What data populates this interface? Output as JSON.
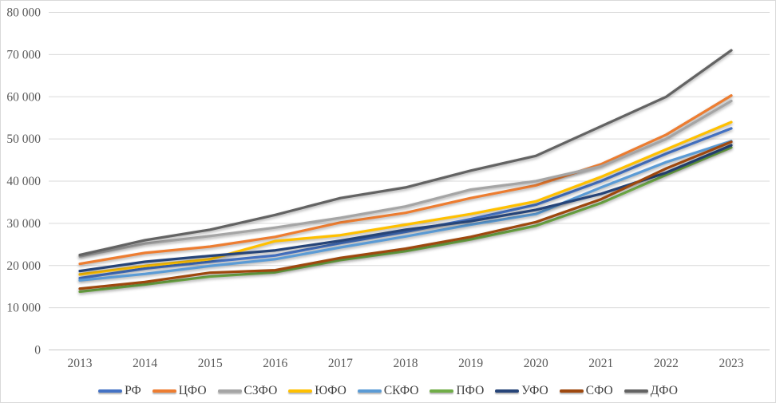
{
  "chart_data": {
    "type": "line",
    "title": "",
    "xlabel": "",
    "ylabel": "",
    "x_labels": [
      "2013",
      "2014",
      "2015",
      "2016",
      "2017",
      "2018",
      "2019",
      "2020",
      "2021",
      "2022",
      "2023"
    ],
    "ylim": [
      0,
      80000
    ],
    "grid": "horizontal",
    "legend_position": "bottom",
    "y_ticks": [
      {
        "label": "0",
        "value": 0
      },
      {
        "label": "10 000",
        "value": 10000
      },
      {
        "label": "20 000",
        "value": 20000
      },
      {
        "label": "30 000",
        "value": 30000
      },
      {
        "label": "40 000",
        "value": 40000
      },
      {
        "label": "50 000",
        "value": 50000
      },
      {
        "label": "60 000",
        "value": 60000
      },
      {
        "label": "70 000",
        "value": 70000
      },
      {
        "label": "80 000",
        "value": 80000
      }
    ],
    "series": [
      {
        "name": "РФ",
        "slug": "rf",
        "color": "#4472C4",
        "values": [
          17000,
          19300,
          20900,
          22400,
          25300,
          28000,
          31000,
          34400,
          40000,
          46500,
          52500
        ]
      },
      {
        "name": "ЦФО",
        "slug": "cfo",
        "color": "#ED7D31",
        "values": [
          20400,
          23000,
          24500,
          26800,
          30200,
          32500,
          36000,
          39000,
          44000,
          51000,
          60300
        ]
      },
      {
        "name": "СЗФО",
        "slug": "szfo",
        "color": "#A5A5A5",
        "values": [
          22200,
          25200,
          27000,
          29000,
          31300,
          34000,
          38000,
          40000,
          43500,
          50000,
          59000
        ]
      },
      {
        "name": "ЮФО",
        "slug": "yufo",
        "color": "#FFC000",
        "values": [
          17900,
          19900,
          21500,
          25800,
          27200,
          29700,
          32200,
          35200,
          41000,
          47500,
          54000
        ]
      },
      {
        "name": "СКФО",
        "slug": "skfo",
        "color": "#5B9BD5",
        "values": [
          16500,
          18000,
          19900,
          21500,
          24300,
          26900,
          29700,
          32200,
          38500,
          44500,
          49500
        ]
      },
      {
        "name": "ПФО",
        "slug": "pfo",
        "color": "#70AD47",
        "values": [
          13800,
          15500,
          17400,
          18400,
          21300,
          23400,
          26200,
          29400,
          34800,
          41500,
          48000
        ]
      },
      {
        "name": "УФО",
        "slug": "ufo",
        "color": "#264478",
        "values": [
          18700,
          20900,
          22300,
          23600,
          25900,
          28500,
          30500,
          33200,
          37000,
          42000,
          48500
        ]
      },
      {
        "name": "СФО",
        "slug": "sfo",
        "color": "#9E480E",
        "values": [
          14500,
          16100,
          18300,
          18900,
          21800,
          24000,
          26800,
          30300,
          35700,
          43000,
          49300
        ]
      },
      {
        "name": "ДФО",
        "slug": "dfo",
        "color": "#636363",
        "values": [
          22500,
          26000,
          28500,
          32000,
          36000,
          38500,
          42500,
          46000,
          53000,
          60000,
          71000
        ]
      }
    ],
    "colors": {
      "grid": "#d9d9d9",
      "axis": "#c6c6c6",
      "tick_text": "#595959",
      "frame_border": "#d9d9d9",
      "background": "#ffffff"
    }
  }
}
